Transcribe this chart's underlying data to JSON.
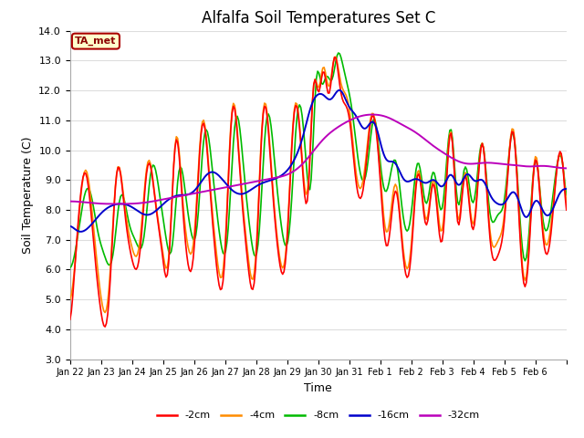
{
  "title": "Alfalfa Soil Temperatures Set C",
  "xlabel": "Time",
  "ylabel": "Soil Temperature (C)",
  "ylim": [
    3.0,
    14.0
  ],
  "yticks": [
    3.0,
    4.0,
    5.0,
    6.0,
    7.0,
    8.0,
    9.0,
    10.0,
    11.0,
    12.0,
    13.0,
    14.0
  ],
  "x_tick_labels": [
    "Jan 22",
    "Jan 23",
    "Jan 24",
    "Jan 25",
    "Jan 26",
    "Jan 27",
    "Jan 28",
    "Jan 29",
    "Jan 30",
    "Jan 31",
    "Feb 1",
    "Feb 2",
    "Feb 3",
    "Feb 4",
    "Feb 5",
    "Feb 6"
  ],
  "colors": {
    "-2cm": "#FF0000",
    "-4cm": "#FF8C00",
    "-8cm": "#00BB00",
    "-16cm": "#0000CC",
    "-32cm": "#BB00BB"
  },
  "legend_labels": [
    "-2cm",
    "-4cm",
    "-8cm",
    "-16cm",
    "-32cm"
  ],
  "fig_bg": "#FFFFFF",
  "plot_bg": "#FFFFFF",
  "grid_color": "#DDDDDD",
  "annotation_text": "TA_met",
  "annotation_bg": "#FFFFCC",
  "annotation_border": "#AA0000",
  "title_fontsize": 12,
  "axis_label_fontsize": 9,
  "tick_fontsize": 8
}
